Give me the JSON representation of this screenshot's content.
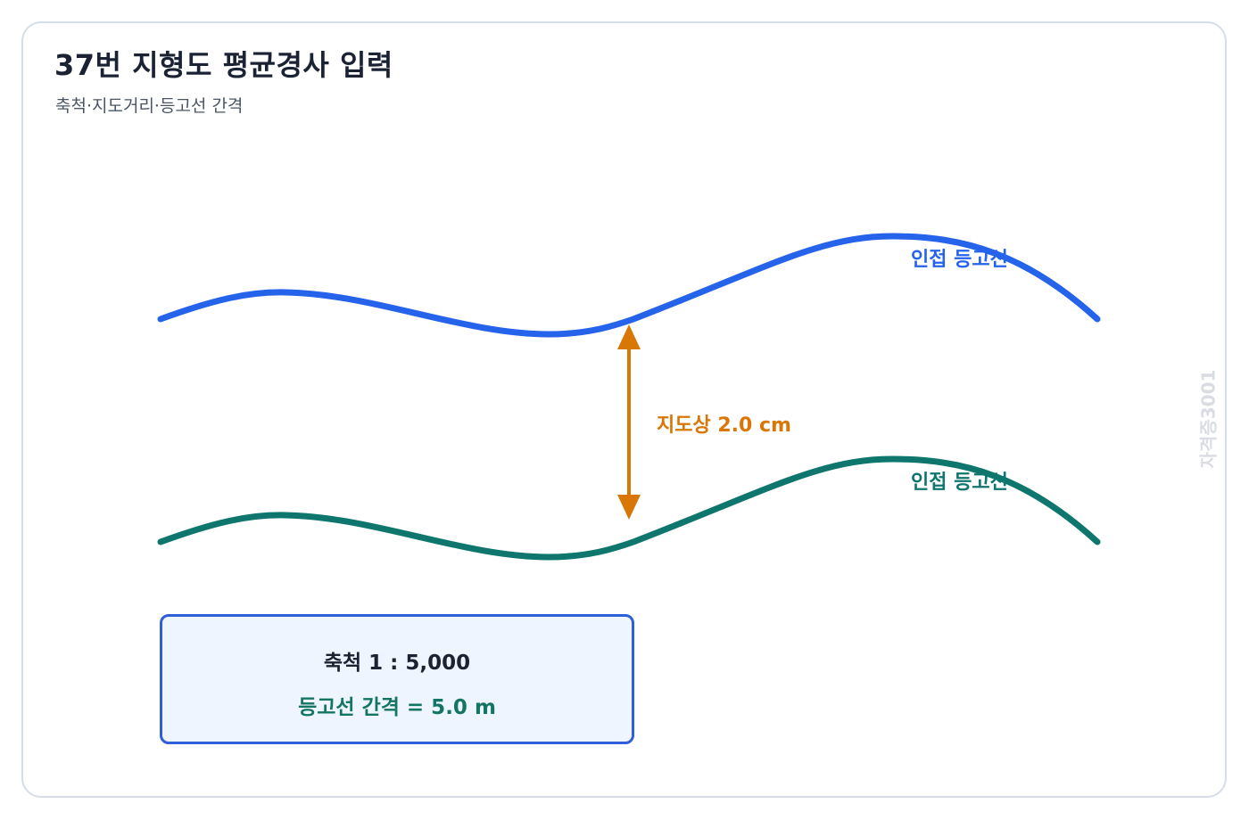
{
  "header": {
    "title": "37번 지형도 평균경사 입력",
    "subtitle": "축척·지도거리·등고선 간격"
  },
  "diagram": {
    "upper_contour": {
      "label": "인접 등고선",
      "color": "#2563eb"
    },
    "lower_contour": {
      "label": "인접 등고선",
      "color": "#0f766e"
    },
    "map_distance": {
      "label": "지도상 2.0 cm",
      "color": "#d97706"
    }
  },
  "info_box": {
    "scale_text": "축척 1 : 5,000",
    "interval_text": "등고선 간격 = 5.0 m"
  },
  "watermark": "자격증3001"
}
